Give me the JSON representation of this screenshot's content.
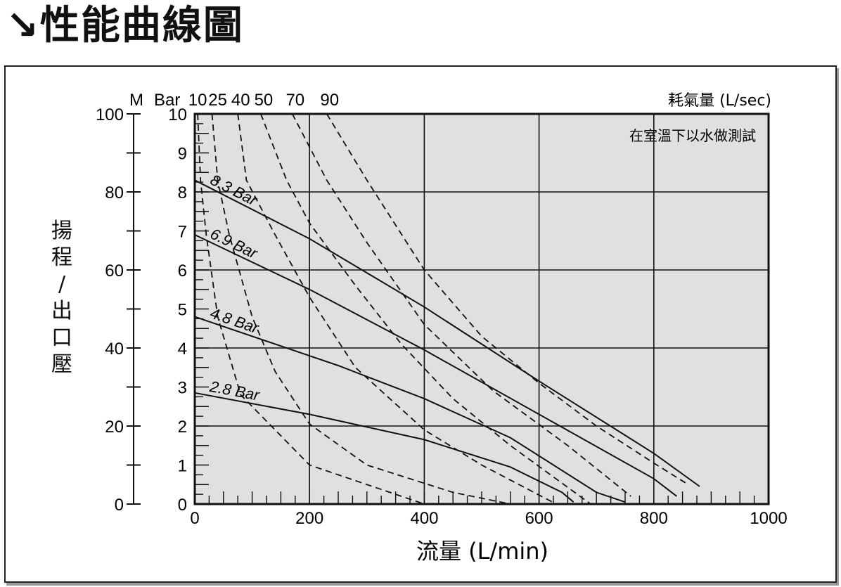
{
  "page": {
    "title": "↘性能曲線圖"
  },
  "chart_data": {
    "type": "line",
    "xlabel": "流量 (L/min)",
    "ylabel_chars": [
      "揚",
      "程",
      "/",
      "出",
      "口",
      "壓"
    ],
    "left_axis_unit": "M",
    "bar_axis_unit": "Bar",
    "air_axis_label": "耗氣量 (L/sec)",
    "note": "在室溫下以水做測試",
    "xlim": [
      0,
      1000
    ],
    "ylim_bar": [
      0,
      10
    ],
    "ylim_m": [
      0,
      100
    ],
    "x_ticks": [
      "0",
      "200",
      "400",
      "600",
      "800",
      "1000"
    ],
    "bar_ticks": [
      "0",
      "1",
      "2",
      "3",
      "4",
      "5",
      "6",
      "7",
      "8",
      "9",
      "10"
    ],
    "m_ticks": [
      "0",
      "20",
      "40",
      "60",
      "80",
      "100"
    ],
    "air_top_labels": [
      {
        "label": "10",
        "x": 5
      },
      {
        "label": "25",
        "x": 40
      },
      {
        "label": "40",
        "x": 80
      },
      {
        "label": "50",
        "x": 120
      },
      {
        "label": "70",
        "x": 175
      },
      {
        "label": "90",
        "x": 235
      }
    ],
    "grid": true,
    "pressure_series": [
      {
        "name": "8.3 Bar",
        "points": [
          [
            0,
            8.3
          ],
          [
            200,
            6.8
          ],
          [
            400,
            5.05
          ],
          [
            600,
            3.15
          ],
          [
            800,
            1.3
          ],
          [
            880,
            0.45
          ]
        ]
      },
      {
        "name": "6.9 Bar",
        "points": [
          [
            0,
            6.9
          ],
          [
            200,
            5.5
          ],
          [
            400,
            3.95
          ],
          [
            600,
            2.3
          ],
          [
            800,
            0.65
          ],
          [
            840,
            0.2
          ]
        ]
      },
      {
        "name": "4.8 Bar",
        "points": [
          [
            0,
            4.8
          ],
          [
            250,
            3.55
          ],
          [
            400,
            2.7
          ],
          [
            550,
            1.7
          ],
          [
            700,
            0.3
          ],
          [
            750,
            0.05
          ]
        ]
      },
      {
        "name": "2.8 Bar",
        "points": [
          [
            0,
            2.85
          ],
          [
            200,
            2.3
          ],
          [
            400,
            1.65
          ],
          [
            550,
            0.95
          ],
          [
            640,
            0.3
          ],
          [
            660,
            0.05
          ]
        ]
      }
    ],
    "air_series": [
      {
        "name": "10",
        "points": [
          [
            5,
            10
          ],
          [
            10,
            8.3
          ],
          [
            20,
            6.9
          ],
          [
            40,
            4.8
          ],
          [
            80,
            2.8
          ],
          [
            200,
            1
          ],
          [
            400,
            0
          ]
        ]
      },
      {
        "name": "25",
        "points": [
          [
            30,
            10
          ],
          [
            40,
            8.3
          ],
          [
            60,
            6.9
          ],
          [
            100,
            4.8
          ],
          [
            140,
            3.4
          ],
          [
            200,
            2.05
          ],
          [
            300,
            1
          ],
          [
            450,
            0.3
          ],
          [
            550,
            0
          ]
        ]
      },
      {
        "name": "40",
        "points": [
          [
            75,
            10
          ],
          [
            90,
            8.3
          ],
          [
            140,
            6.9
          ],
          [
            200,
            5.3
          ],
          [
            280,
            3.5
          ],
          [
            400,
            1.9
          ],
          [
            500,
            1
          ],
          [
            630,
            0
          ]
        ]
      },
      {
        "name": "50",
        "points": [
          [
            115,
            10
          ],
          [
            160,
            8.3
          ],
          [
            200,
            7.2
          ],
          [
            280,
            5.6
          ],
          [
            360,
            4.1
          ],
          [
            450,
            2.7
          ],
          [
            550,
            1.5
          ],
          [
            690,
            0
          ]
        ]
      },
      {
        "name": "70",
        "points": [
          [
            170,
            10
          ],
          [
            230,
            8.3
          ],
          [
            300,
            6.7
          ],
          [
            400,
            4.6
          ],
          [
            520,
            2.9
          ],
          [
            650,
            1.5
          ],
          [
            760,
            0.2
          ]
        ]
      },
      {
        "name": "90",
        "points": [
          [
            230,
            10
          ],
          [
            300,
            8.3
          ],
          [
            400,
            6.0
          ],
          [
            500,
            4.3
          ],
          [
            600,
            3.1
          ],
          [
            700,
            2.0
          ],
          [
            800,
            1.05
          ],
          [
            860,
            0.5
          ]
        ]
      }
    ]
  }
}
